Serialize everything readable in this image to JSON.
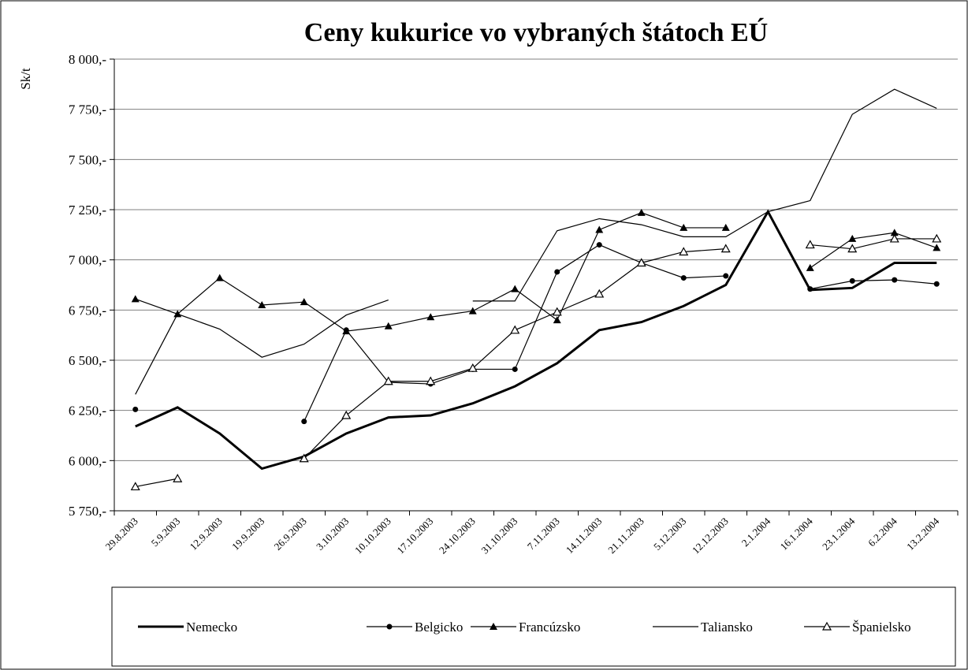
{
  "chart_data": {
    "type": "line",
    "title": "Ceny kukurice vo vybraných štátoch EÚ",
    "y_label": "Sk/t",
    "categories": [
      "29.8.2003",
      "5.9.2003",
      "12.9.2003",
      "19.9.2003",
      "26.9.2003",
      "3.10.2003",
      "10.10.2003",
      "17.10.2003",
      "24.10.2003",
      "31.10.2003",
      "7.11.2003",
      "14.11.2003",
      "21.11.2003",
      "5.12.2003",
      "12.12.2003",
      "2.1.2004",
      "16.1.2004",
      "23.1.2004",
      "6.2.2004",
      "13.2.2004"
    ],
    "series": [
      {
        "name": "Nemecko",
        "color": "#000000",
        "line_width": 3,
        "marker": null,
        "values": [
          6170,
          6265,
          6135,
          5960,
          6020,
          6135,
          6215,
          6225,
          6285,
          6370,
          6485,
          6650,
          6690,
          6770,
          6875,
          7240,
          6850,
          6860,
          6985,
          6985
        ]
      },
      {
        "name": "Belgicko",
        "color": "#000000",
        "line_width": 1.2,
        "marker": "circle",
        "values": [
          6255,
          null,
          null,
          null,
          6195,
          6650,
          6390,
          6382,
          6455,
          6455,
          6940,
          7075,
          6985,
          6910,
          6920,
          null,
          6855,
          6895,
          6900,
          6880
        ]
      },
      {
        "name": "Francúzsko",
        "color": "#000000",
        "line_width": 1.2,
        "marker": "triangle",
        "values": [
          6805,
          6730,
          6910,
          6775,
          6790,
          6645,
          6670,
          6715,
          6745,
          6855,
          6700,
          7150,
          7235,
          7160,
          7160,
          null,
          6960,
          7105,
          7135,
          7060
        ]
      },
      {
        "name": "Taliansko",
        "color": "#000000",
        "line_width": 1.2,
        "marker": null,
        "values": [
          6330,
          6730,
          6655,
          6515,
          6580,
          6725,
          6800,
          null,
          6795,
          6795,
          7145,
          7205,
          7175,
          7115,
          7115,
          7240,
          7295,
          7725,
          7850,
          7755
        ]
      },
      {
        "name": "Španielsko",
        "color": "#000000",
        "line_width": 1.2,
        "marker": "triangle-open",
        "values": [
          5870,
          5910,
          null,
          null,
          6010,
          6225,
          6395,
          6395,
          6460,
          6650,
          6740,
          6830,
          6985,
          7040,
          7055,
          null,
          7075,
          7055,
          7105,
          7105
        ]
      }
    ],
    "ylim": [
      5750,
      8000
    ],
    "yticks": [
      {
        "value": 5750,
        "label": "5 750,-"
      },
      {
        "value": 6000,
        "label": "6 000,-"
      },
      {
        "value": 6250,
        "label": "6 250,-"
      },
      {
        "value": 6500,
        "label": "6 500,-"
      },
      {
        "value": 6750,
        "label": "6 750,-"
      },
      {
        "value": 7000,
        "label": "7 000,-"
      },
      {
        "value": 7250,
        "label": "7 250,-"
      },
      {
        "value": 7500,
        "label": "7 500,-"
      },
      {
        "value": 7750,
        "label": "7 750,-"
      },
      {
        "value": 8000,
        "label": "8 000,-"
      }
    ],
    "grid": true,
    "legend": "bottom"
  }
}
